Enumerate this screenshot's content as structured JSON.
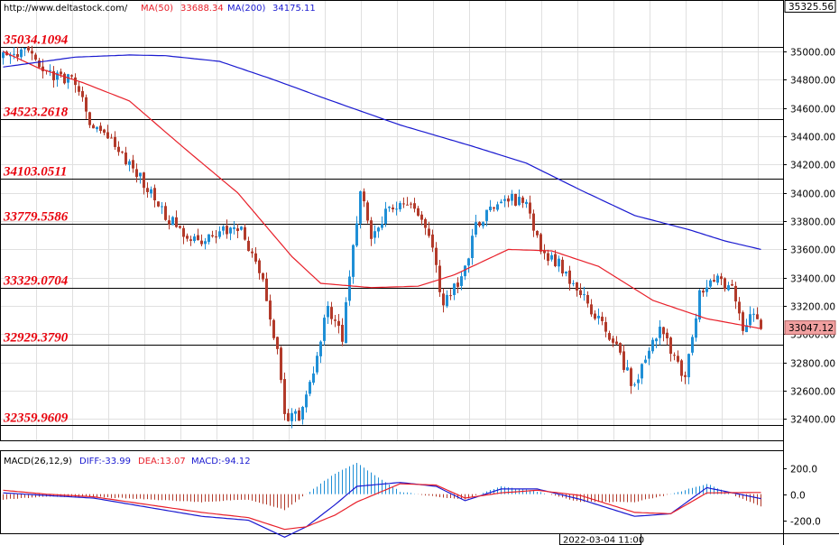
{
  "header": {
    "url": "http://www.deltastock.com/",
    "ma50_label": "MA(50)",
    "ma50_value": "33688.34",
    "ma200_label": "MA(200)",
    "ma200_value": "34175.11"
  },
  "price_axis": {
    "top_value": "35325.56",
    "ticks": [
      35000,
      34800,
      34600,
      34400,
      34200,
      34000,
      33800,
      33600,
      33400,
      33200,
      33000,
      32800,
      32600,
      32400
    ],
    "current_value": "33047.12"
  },
  "levels": [
    {
      "label": "35034.1094",
      "value": 35034.1094
    },
    {
      "label": "34523.2618",
      "value": 34523.2618
    },
    {
      "label": "34103.0511",
      "value": 34103.0511
    },
    {
      "label": "33779.5586",
      "value": 33779.5586
    },
    {
      "label": "33329.0704",
      "value": 33329.0704
    },
    {
      "label": "32929.3790",
      "value": 32929.379
    },
    {
      "label": "32359.9609",
      "value": 32359.9609
    }
  ],
  "macd_header": {
    "label": "MACD(26,12,9)",
    "diff": "DIFF:-33.99",
    "dea": "DEA:13.07",
    "macd": "MACD:-94.12"
  },
  "macd_axis": {
    "ticks": [
      200,
      0,
      -200
    ],
    "tick_labels": [
      "200.0",
      "0.0",
      "-200.0"
    ]
  },
  "time_label": "2022-03-04 11:00",
  "colors": {
    "up": "#1f8fd6",
    "down": "#b23a2a",
    "ma50": "#e8202a",
    "ma200": "#1a1ad0",
    "level": "#e8000b",
    "price_tag_bg": "#f1a0a0",
    "grid": "#e0e0e0"
  },
  "chart_data": [
    {
      "type": "candlestick",
      "ylim": [
        32250,
        35325.56
      ],
      "grid": true,
      "series": [
        {
          "name": "MA(50)",
          "anchors": [
            [
              0,
              35000
            ],
            [
              10,
              34880
            ],
            [
              22,
              34780
            ],
            [
              35,
              34650
            ],
            [
              50,
              34320
            ],
            [
              65,
              34000
            ],
            [
              80,
              33550
            ],
            [
              88,
              33360
            ],
            [
              102,
              33330
            ],
            [
              115,
              33340
            ],
            [
              125,
              33420
            ],
            [
              140,
              33600
            ],
            [
              152,
              33590
            ],
            [
              165,
              33480
            ],
            [
              180,
              33240
            ],
            [
              195,
              33110
            ],
            [
              210,
              33040
            ]
          ]
        },
        {
          "name": "MA(200)",
          "anchors": [
            [
              0,
              34890
            ],
            [
              20,
              34960
            ],
            [
              35,
              34975
            ],
            [
              45,
              34970
            ],
            [
              60,
              34930
            ],
            [
              75,
              34800
            ],
            [
              90,
              34660
            ],
            [
              110,
              34480
            ],
            [
              130,
              34330
            ],
            [
              145,
              34210
            ],
            [
              160,
              34020
            ],
            [
              175,
              33840
            ],
            [
              190,
              33740
            ],
            [
              200,
              33660
            ],
            [
              210,
              33600
            ]
          ]
        }
      ],
      "price_anchors": [
        [
          0,
          34950
        ],
        [
          8,
          35020
        ],
        [
          10,
          34850
        ],
        [
          14,
          34830
        ],
        [
          20,
          34800
        ],
        [
          22,
          34650
        ],
        [
          25,
          34450
        ],
        [
          30,
          34350
        ],
        [
          38,
          34100
        ],
        [
          45,
          33850
        ],
        [
          52,
          33650
        ],
        [
          58,
          33700
        ],
        [
          66,
          33750
        ],
        [
          72,
          33350
        ],
        [
          76,
          32900
        ],
        [
          78,
          32400
        ],
        [
          82,
          32420
        ],
        [
          86,
          32700
        ],
        [
          90,
          33200
        ],
        [
          92,
          33050
        ],
        [
          94,
          32980
        ],
        [
          97,
          33600
        ],
        [
          99,
          34050
        ],
        [
          102,
          33700
        ],
        [
          106,
          33850
        ],
        [
          112,
          33950
        ],
        [
          118,
          33700
        ],
        [
          122,
          33200
        ],
        [
          127,
          33400
        ],
        [
          131,
          33750
        ],
        [
          136,
          33900
        ],
        [
          141,
          33950
        ],
        [
          145,
          33950
        ],
        [
          149,
          33600
        ],
        [
          154,
          33500
        ],
        [
          160,
          33300
        ],
        [
          165,
          33100
        ],
        [
          171,
          32850
        ],
        [
          175,
          32620
        ],
        [
          178,
          32820
        ],
        [
          182,
          33050
        ],
        [
          186,
          32820
        ],
        [
          189,
          32700
        ],
        [
          193,
          33300
        ],
        [
          197,
          33400
        ],
        [
          202,
          33300
        ],
        [
          205,
          33050
        ],
        [
          209,
          33150
        ],
        [
          210,
          33047
        ]
      ]
    },
    {
      "type": "macd",
      "ylim": [
        -300,
        330
      ],
      "series": [
        {
          "name": "DIFF",
          "anchors": [
            [
              0,
              10
            ],
            [
              12,
              -10
            ],
            [
              25,
              -30
            ],
            [
              40,
              -100
            ],
            [
              55,
              -170
            ],
            [
              68,
              -200
            ],
            [
              78,
              -330
            ],
            [
              84,
              -250
            ],
            [
              92,
              -80
            ],
            [
              98,
              60
            ],
            [
              110,
              90
            ],
            [
              120,
              60
            ],
            [
              128,
              -50
            ],
            [
              138,
              40
            ],
            [
              148,
              40
            ],
            [
              160,
              -40
            ],
            [
              175,
              -170
            ],
            [
              185,
              -150
            ],
            [
              195,
              50
            ],
            [
              210,
              -33.99
            ]
          ]
        },
        {
          "name": "DEA",
          "anchors": [
            [
              0,
              30
            ],
            [
              12,
              0
            ],
            [
              25,
              -20
            ],
            [
              40,
              -80
            ],
            [
              55,
              -140
            ],
            [
              68,
              -180
            ],
            [
              78,
              -270
            ],
            [
              84,
              -250
            ],
            [
              92,
              -160
            ],
            [
              98,
              -60
            ],
            [
              110,
              80
            ],
            [
              120,
              70
            ],
            [
              128,
              -30
            ],
            [
              138,
              10
            ],
            [
              148,
              30
            ],
            [
              160,
              -10
            ],
            [
              175,
              -140
            ],
            [
              185,
              -150
            ],
            [
              195,
              10
            ],
            [
              210,
              13.07
            ]
          ]
        }
      ]
    }
  ]
}
